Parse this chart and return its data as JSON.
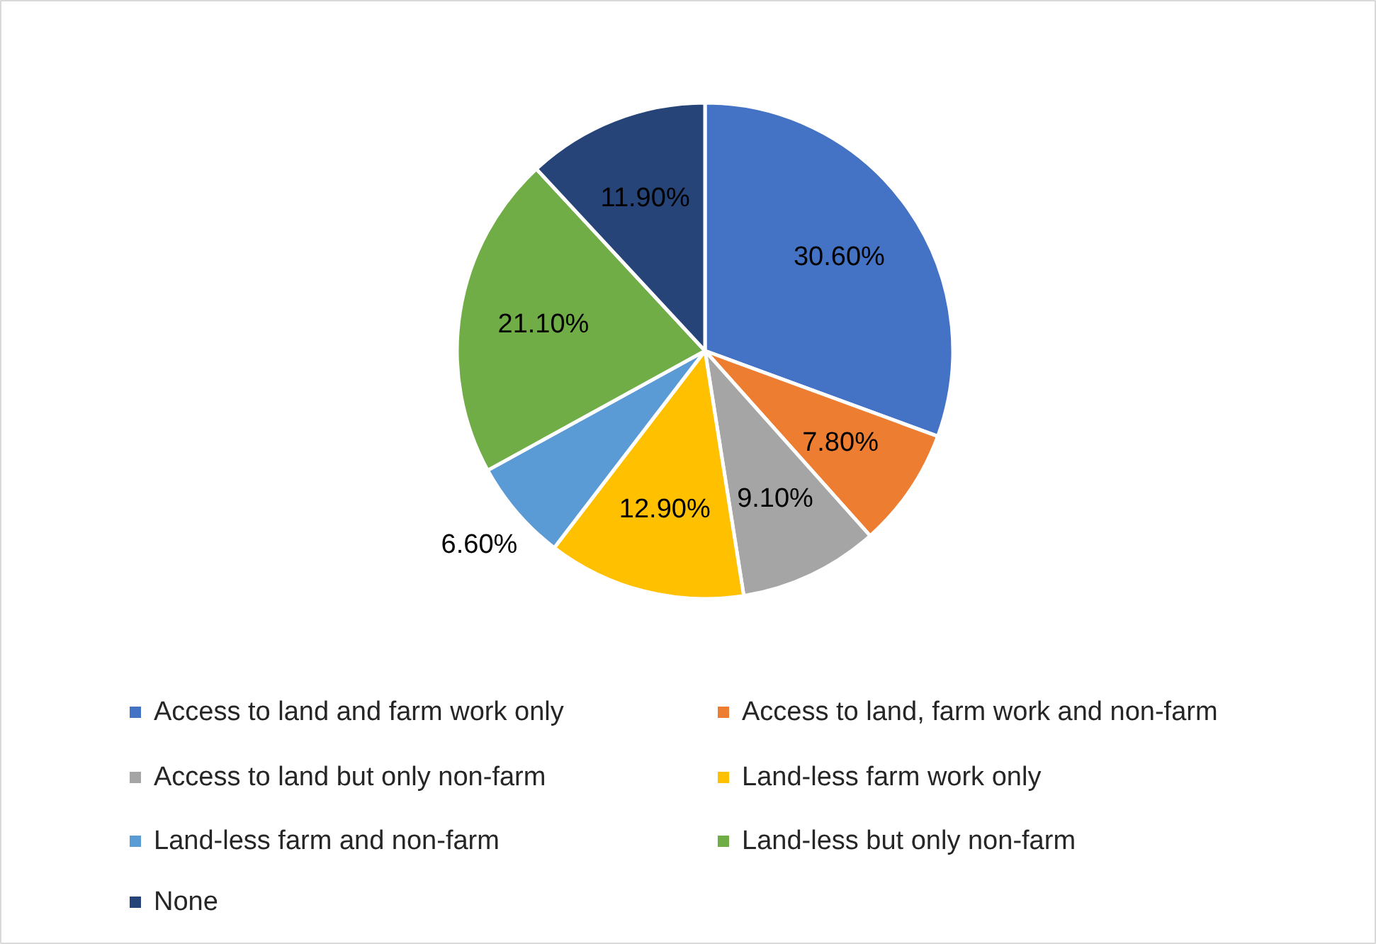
{
  "chart_data": {
    "type": "pie",
    "categories": [
      "Access to land and farm work only",
      "Access to land, farm work and non-farm",
      "Access to land but only non-farm",
      "Land-less farm work only",
      "Land-less farm and non-farm",
      "Land-less but only non-farm",
      "None"
    ],
    "values": [
      30.6,
      7.8,
      9.1,
      12.9,
      6.6,
      21.1,
      11.9
    ],
    "value_labels": [
      "30.60%",
      "7.80%",
      "9.10%",
      "12.90%",
      "6.60%",
      "21.10%",
      "11.90%"
    ],
    "colors": [
      "#4472c4",
      "#ed7d31",
      "#a5a5a5",
      "#ffc000",
      "#5b9bd5",
      "#70ad47",
      "#264478"
    ],
    "legend": "bottom"
  }
}
